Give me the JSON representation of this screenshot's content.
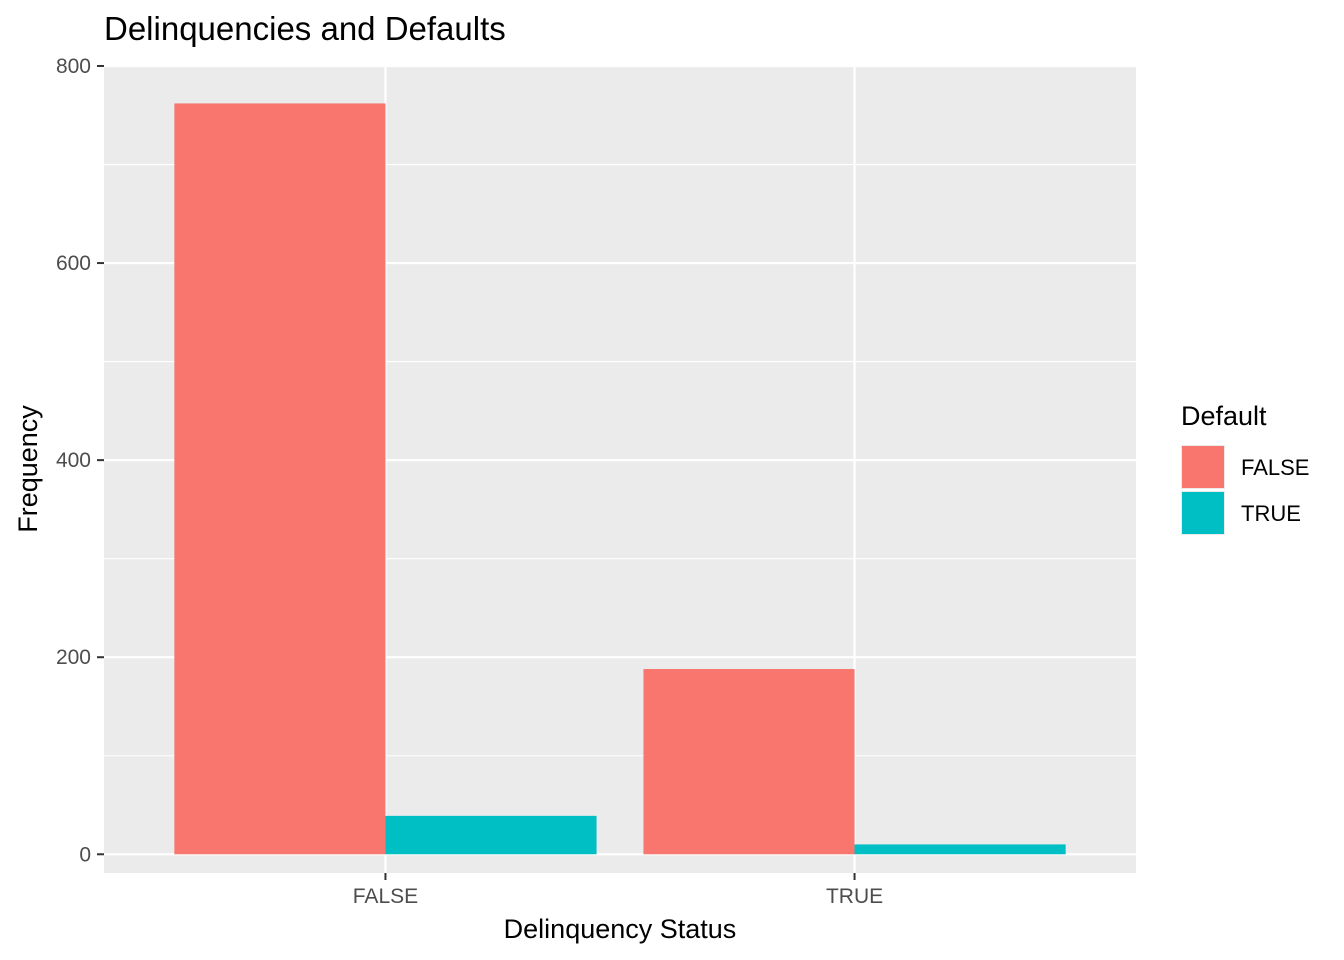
{
  "chart_data": {
    "type": "bar",
    "title": "Delinquencies and Defaults",
    "xlabel": "Delinquency Status",
    "ylabel": "Frequency",
    "categories": [
      "FALSE",
      "TRUE"
    ],
    "series": [
      {
        "name": "FALSE",
        "values": [
          762,
          188
        ]
      },
      {
        "name": "TRUE",
        "values": [
          39,
          10
        ]
      }
    ],
    "ylim": [
      -19,
      801
    ],
    "yticks": [
      0,
      200,
      400,
      600,
      800
    ],
    "grid": true,
    "legend": {
      "title": "Default",
      "placement": "right"
    },
    "colors": {
      "FALSE": "#F8766D",
      "TRUE": "#00BFC4",
      "panel_background": "#EBEBEB",
      "grid_lines": "#FFFFFF"
    }
  }
}
